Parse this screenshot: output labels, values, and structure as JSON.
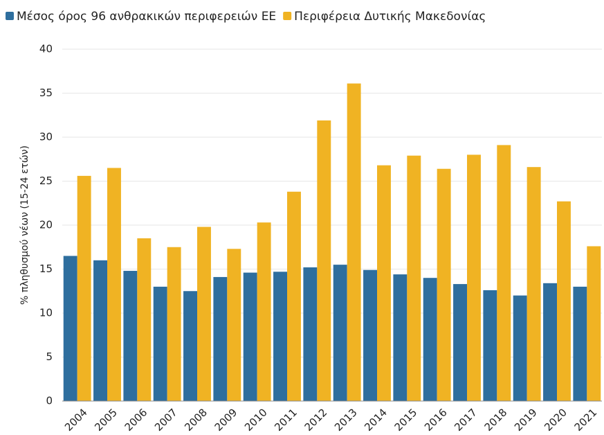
{
  "chart_data": {
    "type": "bar",
    "y_label": "% πληθυσμού νέων (15-24 ετών)",
    "categories": [
      "2004",
      "2005",
      "2006",
      "2007",
      "2008",
      "2009",
      "2010",
      "2011",
      "2012",
      "2013",
      "2014",
      "2015",
      "2016",
      "2017",
      "2018",
      "2019",
      "2020",
      "2021"
    ],
    "series": [
      {
        "name": "Μέσος όρος 96 ανθρακικών περιφερειών ΕΕ",
        "color": "#2e6e9e",
        "values": [
          16.5,
          16.0,
          14.8,
          13.0,
          12.5,
          14.1,
          14.6,
          14.7,
          15.2,
          15.5,
          14.9,
          14.4,
          14.0,
          13.3,
          12.6,
          12.0,
          13.4,
          13.0
        ]
      },
      {
        "name": "Περιφέρεια Δυτικής Μακεδονίας",
        "color": "#f0b323",
        "values": [
          25.6,
          26.5,
          18.5,
          17.5,
          19.8,
          17.3,
          20.3,
          23.8,
          31.9,
          36.1,
          26.8,
          27.9,
          26.4,
          28.0,
          29.1,
          26.6,
          22.7,
          17.6
        ]
      }
    ],
    "ylim": [
      0,
      40
    ],
    "yticks": [
      0,
      5,
      10,
      15,
      20,
      25,
      30,
      35,
      40
    ],
    "grid": true
  }
}
